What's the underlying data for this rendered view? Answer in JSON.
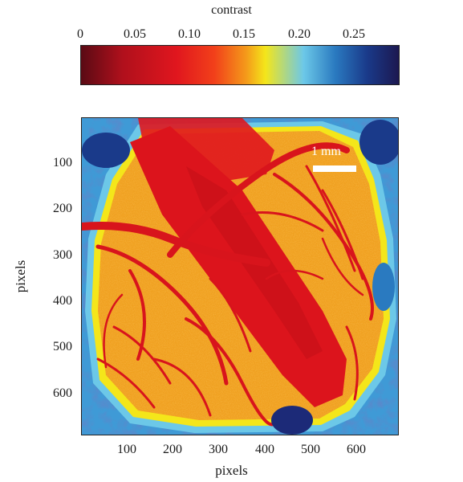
{
  "colorbar": {
    "title": "contrast",
    "ticks": [
      "0",
      "0.05",
      "0.10",
      "0.15",
      "0.20",
      "0.25"
    ],
    "tick_values": [
      0,
      0.05,
      0.1,
      0.15,
      0.2,
      0.25
    ],
    "range": [
      0,
      0.29
    ],
    "colors": [
      "#5a0a14",
      "#b0101c",
      "#e0161e",
      "#f2401a",
      "#f49a1a",
      "#f4e61a",
      "#6cc8e8",
      "#2a7ac0",
      "#1a3a8a",
      "#1c1850"
    ]
  },
  "image": {
    "x_label": "pixels",
    "y_label": "pixels",
    "x_ticks": [
      "100",
      "200",
      "300",
      "400",
      "500",
      "600"
    ],
    "x_tick_values": [
      100,
      200,
      300,
      400,
      500,
      600
    ],
    "y_ticks": [
      "100",
      "200",
      "300",
      "400",
      "500",
      "600"
    ],
    "y_tick_values": [
      100,
      200,
      300,
      400,
      500,
      600
    ],
    "x_range": [
      0,
      690
    ],
    "y_range": [
      0,
      690
    ],
    "scale_bar": "1 mm"
  }
}
